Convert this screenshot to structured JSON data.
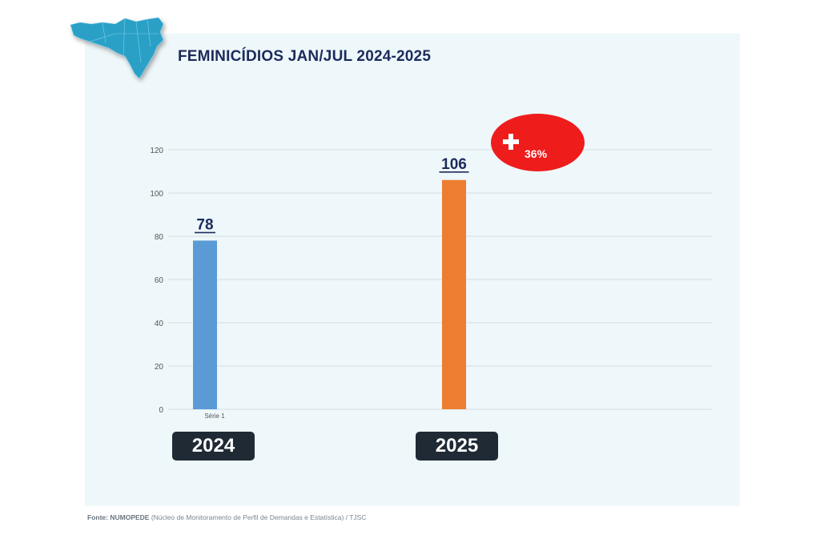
{
  "title": "FEMINICÍDIOS JAN/JUL 2024-2025",
  "badge": {
    "icon": "plus-icon",
    "text": "36%",
    "color": "#ef1c1c"
  },
  "years": [
    "2024",
    "2025"
  ],
  "source": {
    "label": "Fonte:",
    "org": "NUMOPEDE",
    "detail": " (Núcleo de Monitoramento de Perfil de Demandas e Estatística) / TJSC"
  },
  "chart_data": {
    "type": "bar",
    "categories": [
      "Série 1",
      ""
    ],
    "series": [
      {
        "values": [
          78,
          null
        ],
        "color": "#5b9bd5"
      },
      {
        "values": [
          null,
          106
        ],
        "color": "#ed7d31"
      }
    ],
    "data_labels": [
      "78",
      "106"
    ],
    "yticks": [
      0,
      20,
      40,
      60,
      80,
      100,
      120
    ],
    "ylim": [
      0,
      120
    ],
    "grid": true,
    "legend": "none"
  },
  "colors": {
    "title": "#1c2b5c",
    "panel": "#eef7fa",
    "map": "#2aa0c7"
  }
}
